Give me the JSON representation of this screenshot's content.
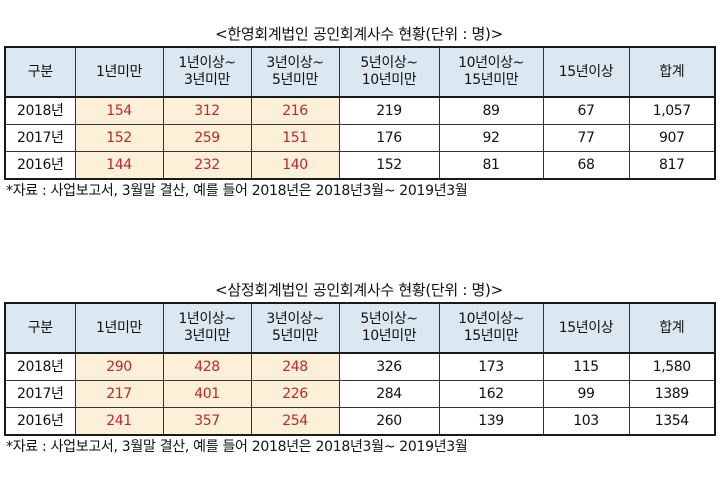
{
  "tables": [
    {
      "title": "<한영회계법인 공인회계사수 현황(단위 : 명)>",
      "headers": [
        "구분",
        "1년미만",
        "1년이상~\n3년미만",
        "3년이상~\n5년미만",
        "5년이상~\n10년미만",
        "10년이상~\n15년미만",
        "15년이상",
        "합계"
      ],
      "rows": [
        [
          "2018년",
          "154",
          "312",
          "216",
          "219",
          "89",
          "67",
          "1,057"
        ],
        [
          "2017년",
          "152",
          "259",
          "151",
          "176",
          "92",
          "77",
          "907"
        ],
        [
          "2016년",
          "144",
          "232",
          "140",
          "152",
          "81",
          "68",
          "817"
        ]
      ],
      "note": "*자료 : 사업보고서, 3월말 결산, 예를 들어 2018년은 2018년3월~ 2019년3월"
    },
    {
      "title": "<삼정회계법인 공인회계사수 현황(단위 : 명)>",
      "headers": [
        "구분",
        "1년미만",
        "1년이상~\n3년미만",
        "3년이상~\n5년미만",
        "5년이상~\n10년미만",
        "10년이상~\n15년미만",
        "15년이상",
        "합계"
      ],
      "rows": [
        [
          "2018년",
          "290",
          "428",
          "248",
          "326",
          "173",
          "115",
          "1,580"
        ],
        [
          "2017년",
          "217",
          "401",
          "226",
          "284",
          "162",
          "99",
          "1389"
        ],
        [
          "2016년",
          "241",
          "357",
          "254",
          "260",
          "139",
          "103",
          "1354"
        ]
      ],
      "note": "*자료 : 사업보고서, 3월말 결산, 예를 들어 2018년은 2018년3월~ 2019년3월"
    }
  ]
}
